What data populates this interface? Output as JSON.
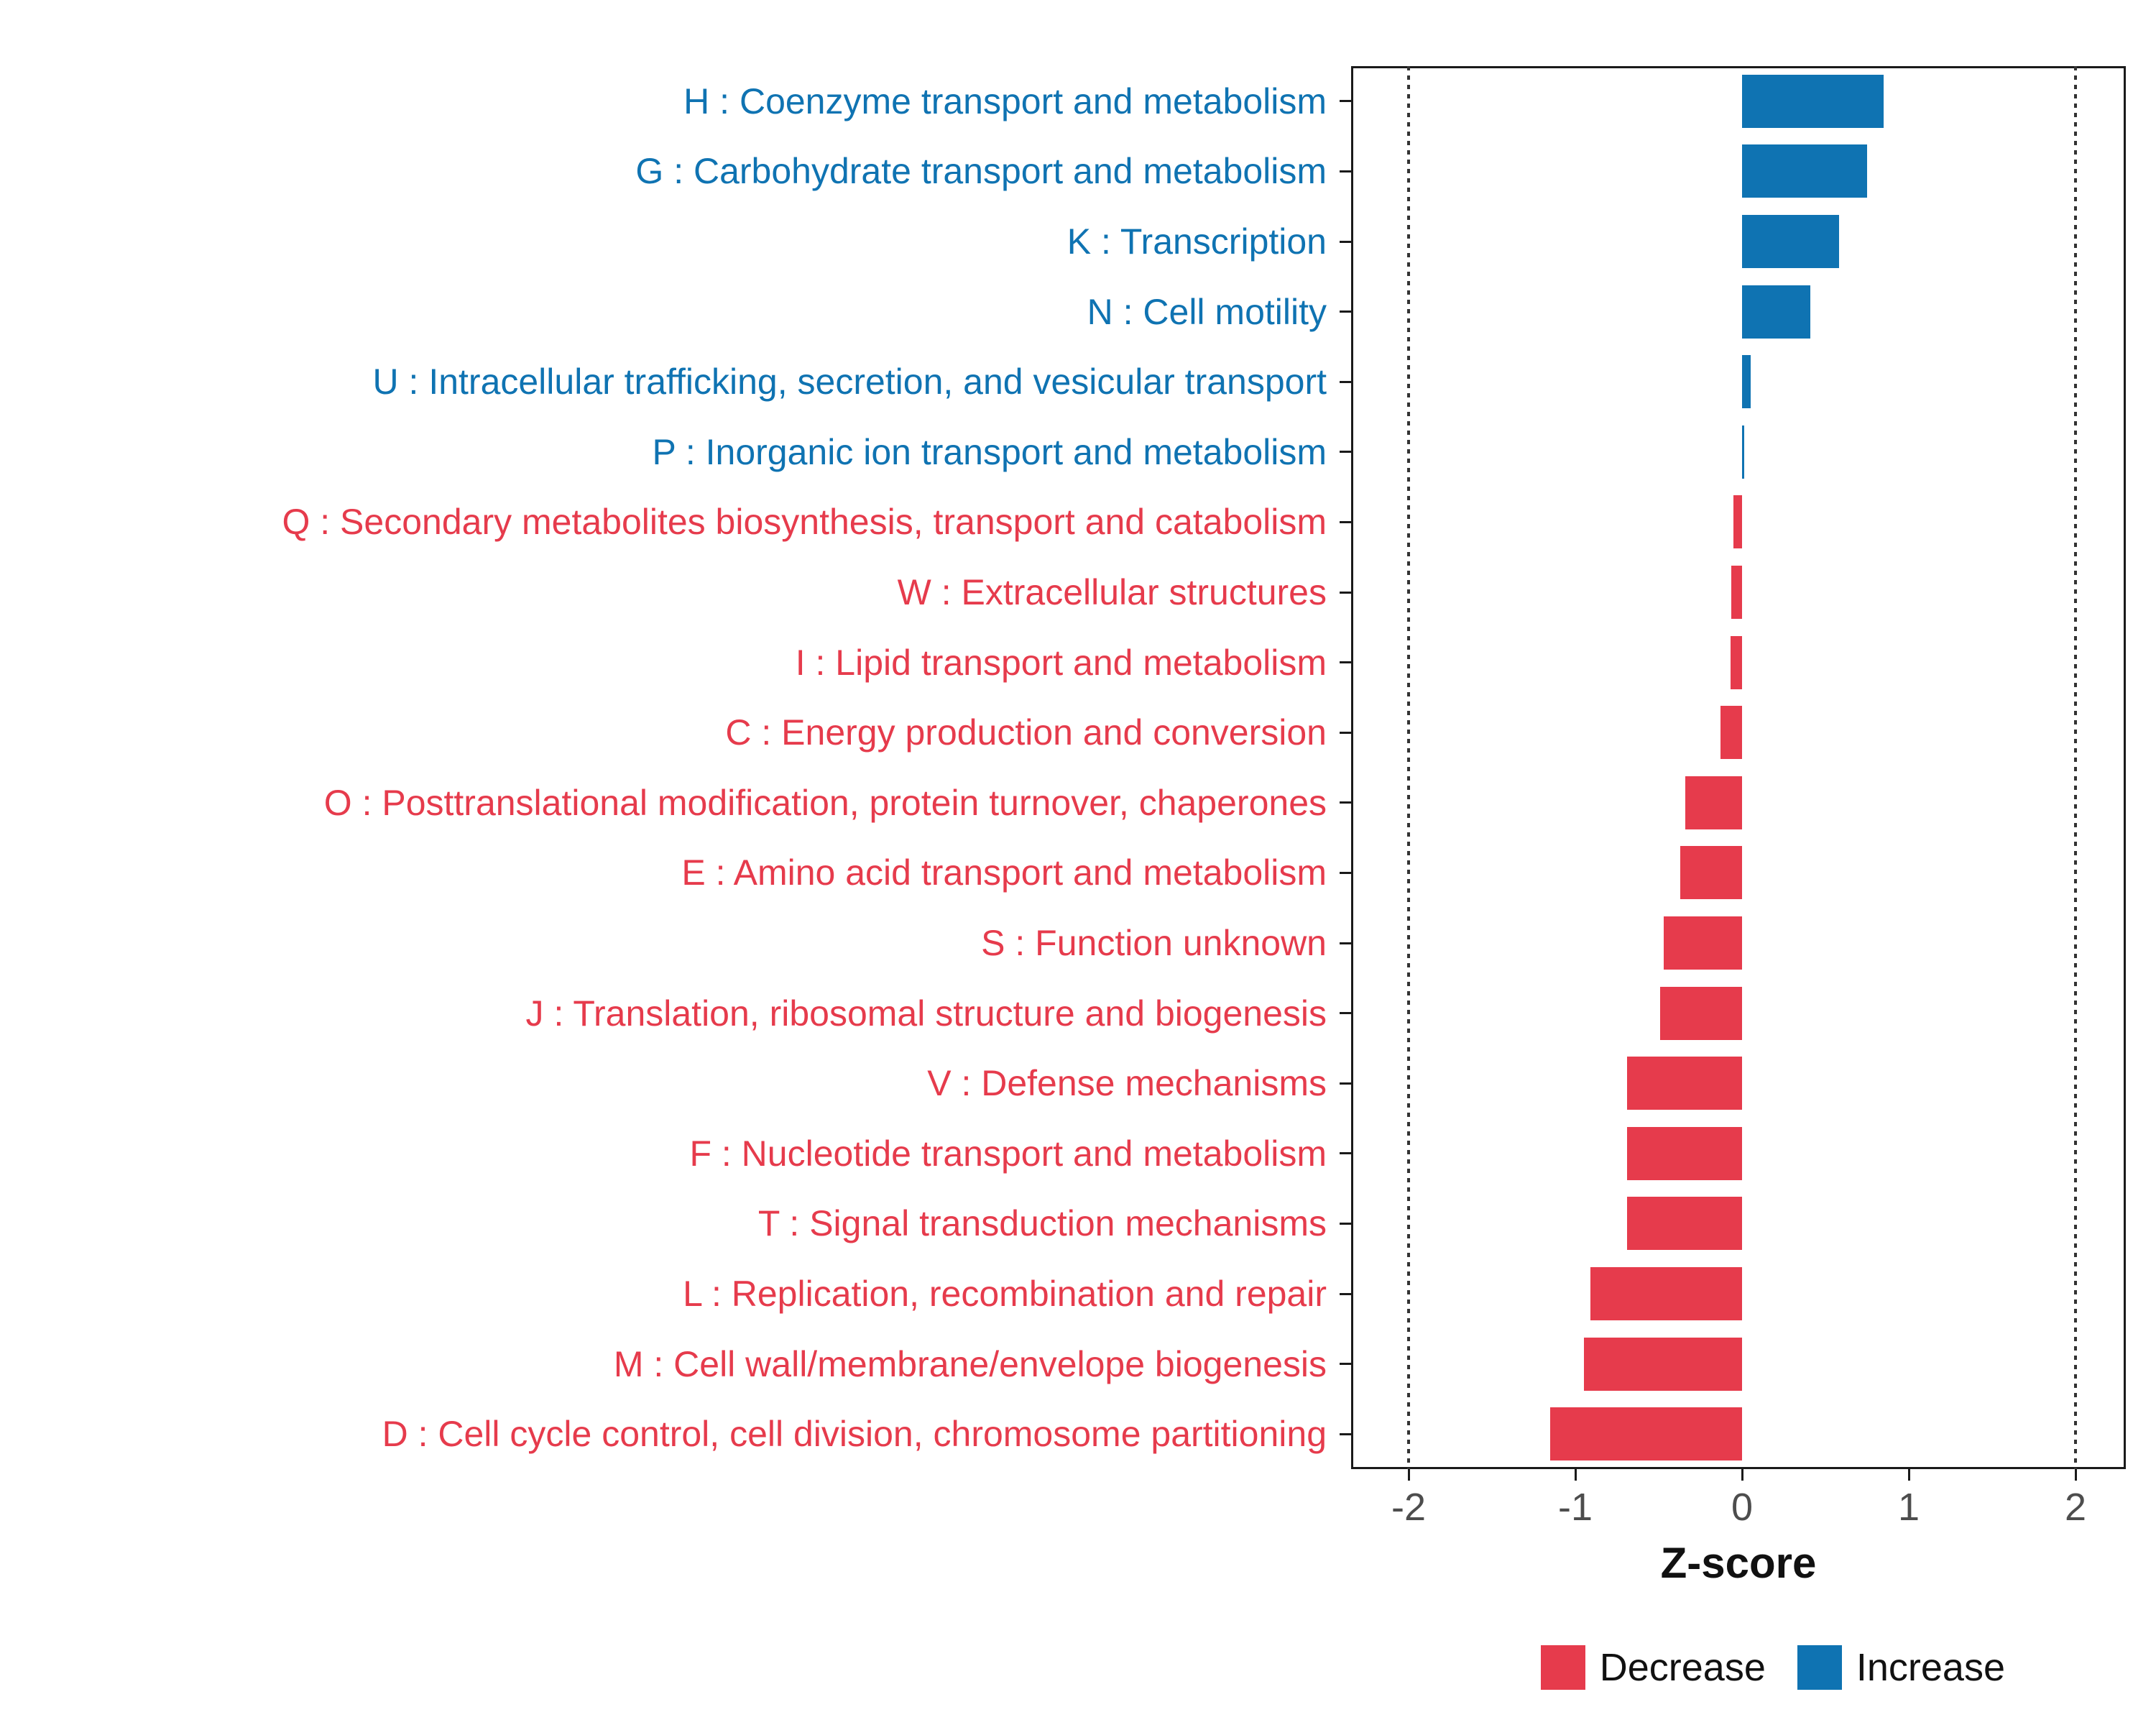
{
  "chart_data": {
    "type": "bar",
    "orientation": "horizontal",
    "title": "",
    "xlabel": "Z-score",
    "xticks": [
      -2,
      -1,
      0,
      1,
      2
    ],
    "ref_lines": [
      -2,
      2
    ],
    "xlim": [
      -2.35,
      2.3
    ],
    "grid": "dotted reference lines at -2 and 2 only",
    "legend_position": "bottom-right",
    "colors": {
      "increase": "#0F73B2",
      "decrease": "#E63B4C",
      "axis": "#1a1a1a",
      "tick_label": "#4d4d4d"
    },
    "legend": [
      {
        "label": "Decrease",
        "color": "#E63B4C"
      },
      {
        "label": "Increase",
        "color": "#0F73B2"
      }
    ],
    "categories": [
      {
        "label": "H : Coenzyme transport and metabolism",
        "value": 0.85,
        "group": "Increase"
      },
      {
        "label": "G : Carbohydrate transport and metabolism",
        "value": 0.75,
        "group": "Increase"
      },
      {
        "label": "K : Transcription",
        "value": 0.58,
        "group": "Increase"
      },
      {
        "label": "N : Cell motility",
        "value": 0.41,
        "group": "Increase"
      },
      {
        "label": "U : Intracellular trafficking, secretion, and vesicular transport",
        "value": 0.05,
        "group": "Increase"
      },
      {
        "label": "P : Inorganic ion transport and metabolism",
        "value": 0.015,
        "group": "Increase"
      },
      {
        "label": "Q : Secondary metabolites biosynthesis, transport and catabolism",
        "value": -0.05,
        "group": "Decrease"
      },
      {
        "label": "W : Extracellular structures",
        "value": -0.065,
        "group": "Decrease"
      },
      {
        "label": "I : Lipid transport and metabolism",
        "value": -0.07,
        "group": "Decrease"
      },
      {
        "label": "C : Energy production and conversion",
        "value": -0.13,
        "group": "Decrease"
      },
      {
        "label": "O : Posttranslational modification, protein turnover, chaperones",
        "value": -0.34,
        "group": "Decrease"
      },
      {
        "label": "E : Amino acid transport and metabolism",
        "value": -0.37,
        "group": "Decrease"
      },
      {
        "label": "S : Function unknown",
        "value": -0.47,
        "group": "Decrease"
      },
      {
        "label": "J : Translation, ribosomal structure and biogenesis",
        "value": -0.49,
        "group": "Decrease"
      },
      {
        "label": "V : Defense mechanisms",
        "value": -0.69,
        "group": "Decrease"
      },
      {
        "label": "F : Nucleotide transport and metabolism",
        "value": -0.69,
        "group": "Decrease"
      },
      {
        "label": "T : Signal transduction mechanisms",
        "value": -0.69,
        "group": "Decrease"
      },
      {
        "label": "L : Replication, recombination and repair",
        "value": -0.91,
        "group": "Decrease"
      },
      {
        "label": "M : Cell wall/membrane/envelope biogenesis",
        "value": -0.95,
        "group": "Decrease"
      },
      {
        "label": "D : Cell cycle control, cell division, chromosome partitioning",
        "value": -1.15,
        "group": "Decrease"
      }
    ]
  }
}
